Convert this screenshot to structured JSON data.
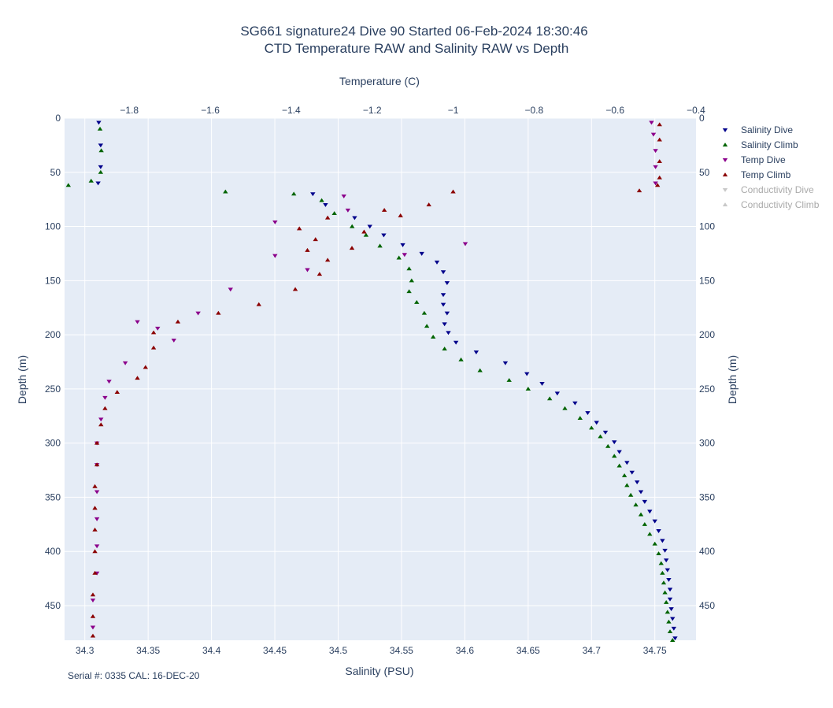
{
  "chart_data": {
    "type": "scatter",
    "title": "SG661 signature24 Dive 90 Started 06-Feb-2024 18:30:46",
    "subtitle": "CTD Temperature RAW and Salinity RAW vs Depth",
    "xlabel": "Salinity (PSU)",
    "x2label": "Temperature (C)",
    "ylabel": "Depth (m)",
    "y2label": "Depth (m)",
    "annotation": "Serial #: 0335  CAL: 16-DEC-20",
    "xlim": [
      34.284,
      34.7825
    ],
    "x2lim": [
      -1.96,
      -0.4
    ],
    "ylim": [
      482,
      0
    ],
    "x_ticks": [
      {
        "v": 34.3,
        "label": "34.3"
      },
      {
        "v": 34.35,
        "label": "34.35"
      },
      {
        "v": 34.4,
        "label": "34.4"
      },
      {
        "v": 34.45,
        "label": "34.45"
      },
      {
        "v": 34.5,
        "label": "34.5"
      },
      {
        "v": 34.55,
        "label": "34.55"
      },
      {
        "v": 34.6,
        "label": "34.6"
      },
      {
        "v": 34.65,
        "label": "34.65"
      },
      {
        "v": 34.7,
        "label": "34.7"
      },
      {
        "v": 34.75,
        "label": "34.75"
      }
    ],
    "x2_ticks": [
      {
        "v": -1.8,
        "label": "−1.8"
      },
      {
        "v": -1.6,
        "label": "−1.6"
      },
      {
        "v": -1.4,
        "label": "−1.4"
      },
      {
        "v": -1.2,
        "label": "−1.2"
      },
      {
        "v": -1,
        "label": "−1"
      },
      {
        "v": -0.8,
        "label": "−0.8"
      },
      {
        "v": -0.6,
        "label": "−0.6"
      },
      {
        "v": -0.4,
        "label": "−0.4"
      }
    ],
    "y_ticks": [
      {
        "v": 0,
        "label": "0"
      },
      {
        "v": 50,
        "label": "50"
      },
      {
        "v": 100,
        "label": "100"
      },
      {
        "v": 150,
        "label": "150"
      },
      {
        "v": 200,
        "label": "200"
      },
      {
        "v": 250,
        "label": "250"
      },
      {
        "v": 300,
        "label": "300"
      },
      {
        "v": 350,
        "label": "350"
      },
      {
        "v": 400,
        "label": "400"
      },
      {
        "v": 450,
        "label": "450"
      }
    ],
    "grid": true,
    "legend_position": "right",
    "series": [
      {
        "name": "Salinity Dive",
        "axis": "salinity",
        "marker": "triangle-down",
        "color": "#00008b",
        "points": [
          [
            34.311,
            4
          ],
          [
            34.3125,
            25
          ],
          [
            34.3125,
            45
          ],
          [
            34.3105,
            60
          ],
          [
            34.48,
            70
          ],
          [
            34.49,
            80
          ],
          [
            34.513,
            92
          ],
          [
            34.525,
            100
          ],
          [
            34.536,
            108
          ],
          [
            34.551,
            117
          ],
          [
            34.566,
            125
          ],
          [
            34.578,
            133
          ],
          [
            34.583,
            142
          ],
          [
            34.586,
            152
          ],
          [
            34.583,
            163
          ],
          [
            34.583,
            172
          ],
          [
            34.586,
            180
          ],
          [
            34.584,
            190
          ],
          [
            34.587,
            198
          ],
          [
            34.593,
            207
          ],
          [
            34.609,
            216
          ],
          [
            34.632,
            226
          ],
          [
            34.649,
            236
          ],
          [
            34.661,
            245
          ],
          [
            34.673,
            254
          ],
          [
            34.687,
            263
          ],
          [
            34.697,
            272
          ],
          [
            34.704,
            281
          ],
          [
            34.711,
            290
          ],
          [
            34.718,
            299
          ],
          [
            34.722,
            308
          ],
          [
            34.728,
            318
          ],
          [
            34.732,
            327
          ],
          [
            34.736,
            336
          ],
          [
            34.739,
            345
          ],
          [
            34.742,
            354
          ],
          [
            34.746,
            363
          ],
          [
            34.75,
            372
          ],
          [
            34.753,
            381
          ],
          [
            34.756,
            390
          ],
          [
            34.758,
            399
          ],
          [
            34.759,
            408
          ],
          [
            34.76,
            417
          ],
          [
            34.761,
            426
          ],
          [
            34.762,
            435
          ],
          [
            34.762,
            444
          ],
          [
            34.763,
            453
          ],
          [
            34.764,
            462
          ],
          [
            34.765,
            471
          ],
          [
            34.766,
            480
          ]
        ]
      },
      {
        "name": "Salinity Climb",
        "axis": "salinity",
        "marker": "triangle-up",
        "color": "#006400",
        "points": [
          [
            34.312,
            10
          ],
          [
            34.313,
            30
          ],
          [
            34.3125,
            50
          ],
          [
            34.287,
            62
          ],
          [
            34.305,
            58
          ],
          [
            34.411,
            68
          ],
          [
            34.465,
            70
          ],
          [
            34.487,
            76
          ],
          [
            34.497,
            88
          ],
          [
            34.511,
            100
          ],
          [
            34.522,
            108
          ],
          [
            34.533,
            118
          ],
          [
            34.548,
            129
          ],
          [
            34.556,
            139
          ],
          [
            34.558,
            150
          ],
          [
            34.556,
            160
          ],
          [
            34.562,
            170
          ],
          [
            34.568,
            180
          ],
          [
            34.57,
            192
          ],
          [
            34.575,
            202
          ],
          [
            34.584,
            213
          ],
          [
            34.597,
            223
          ],
          [
            34.612,
            233
          ],
          [
            34.635,
            242
          ],
          [
            34.65,
            250
          ],
          [
            34.667,
            259
          ],
          [
            34.679,
            268
          ],
          [
            34.691,
            277
          ],
          [
            34.7,
            286
          ],
          [
            34.707,
            294
          ],
          [
            34.713,
            303
          ],
          [
            34.718,
            312
          ],
          [
            34.722,
            321
          ],
          [
            34.726,
            330
          ],
          [
            34.728,
            339
          ],
          [
            34.731,
            348
          ],
          [
            34.735,
            357
          ],
          [
            34.739,
            366
          ],
          [
            34.742,
            375
          ],
          [
            34.746,
            384
          ],
          [
            34.75,
            393
          ],
          [
            34.753,
            402
          ],
          [
            34.755,
            411
          ],
          [
            34.756,
            420
          ],
          [
            34.757,
            429
          ],
          [
            34.758,
            438
          ],
          [
            34.759,
            447
          ],
          [
            34.76,
            456
          ],
          [
            34.761,
            465
          ],
          [
            34.762,
            474
          ],
          [
            34.764,
            482
          ]
        ]
      },
      {
        "name": "Temp Dive",
        "axis": "temperature",
        "marker": "triangle-down",
        "color": "#8b008b",
        "points": [
          [
            -0.51,
            4
          ],
          [
            -0.505,
            15
          ],
          [
            -0.5,
            30
          ],
          [
            -0.5,
            45
          ],
          [
            -0.5,
            60
          ],
          [
            -1.27,
            72
          ],
          [
            -1.26,
            85
          ],
          [
            -1.44,
            96
          ],
          [
            -1.44,
            127
          ],
          [
            -1.36,
            140
          ],
          [
            -1.55,
            158
          ],
          [
            -1.63,
            180
          ],
          [
            -1.78,
            188
          ],
          [
            -1.73,
            194
          ],
          [
            -1.69,
            205
          ],
          [
            -1.81,
            226
          ],
          [
            -1.85,
            243
          ],
          [
            -1.86,
            258
          ],
          [
            -1.87,
            278
          ],
          [
            -1.88,
            300
          ],
          [
            -1.88,
            320
          ],
          [
            -1.88,
            345
          ],
          [
            -1.88,
            370
          ],
          [
            -1.88,
            395
          ],
          [
            -1.88,
            420
          ],
          [
            -1.89,
            445
          ],
          [
            -1.89,
            470
          ],
          [
            -0.97,
            116
          ],
          [
            -1.12,
            126
          ]
        ]
      },
      {
        "name": "Temp Climb",
        "axis": "temperature",
        "marker": "triangle-up",
        "color": "#8b0000",
        "points": [
          [
            -0.49,
            6
          ],
          [
            -0.49,
            20
          ],
          [
            -0.49,
            40
          ],
          [
            -0.49,
            55
          ],
          [
            -0.495,
            62
          ],
          [
            -0.54,
            67
          ],
          [
            -1.0,
            68
          ],
          [
            -1.06,
            80
          ],
          [
            -1.17,
            85
          ],
          [
            -1.31,
            92
          ],
          [
            -1.38,
            102
          ],
          [
            -1.34,
            112
          ],
          [
            -1.36,
            122
          ],
          [
            -1.31,
            131
          ],
          [
            -1.33,
            144
          ],
          [
            -1.39,
            158
          ],
          [
            -1.48,
            172
          ],
          [
            -1.58,
            180
          ],
          [
            -1.68,
            188
          ],
          [
            -1.74,
            198
          ],
          [
            -1.74,
            212
          ],
          [
            -1.76,
            230
          ],
          [
            -1.78,
            240
          ],
          [
            -1.83,
            253
          ],
          [
            -1.86,
            268
          ],
          [
            -1.87,
            283
          ],
          [
            -1.88,
            300
          ],
          [
            -1.88,
            320
          ],
          [
            -1.885,
            340
          ],
          [
            -1.885,
            360
          ],
          [
            -1.885,
            380
          ],
          [
            -1.885,
            400
          ],
          [
            -1.885,
            420
          ],
          [
            -1.89,
            440
          ],
          [
            -1.89,
            460
          ],
          [
            -1.89,
            478
          ],
          [
            -1.22,
            105
          ],
          [
            -1.13,
            90
          ],
          [
            -1.25,
            120
          ]
        ]
      },
      {
        "name": "Conductivity Dive",
        "axis": "salinity",
        "marker": "triangle-down",
        "color": "#c8c8c8",
        "hidden": true,
        "points": []
      },
      {
        "name": "Conductivity Climb",
        "axis": "salinity",
        "marker": "triangle-up",
        "color": "#c8c8c8",
        "hidden": true,
        "points": []
      }
    ]
  }
}
